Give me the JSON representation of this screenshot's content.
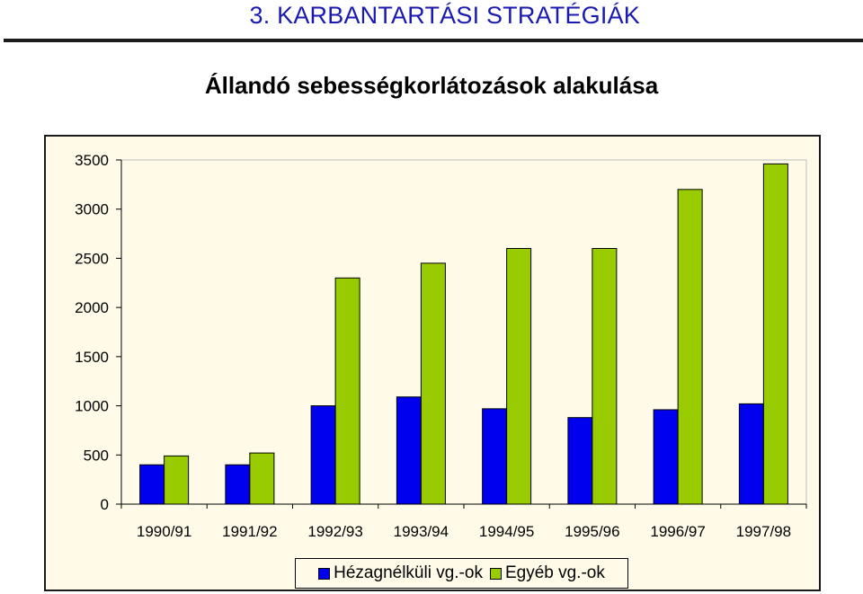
{
  "header": {
    "section_title": "3. KARBANTARTÁSI STRATÉGIÁK",
    "chart_title": "Állandó sebességkorlátozások alakulása"
  },
  "colors": {
    "title": "#1a1ab0",
    "plot_background": "#fffbe8",
    "series_1": "#0000ee",
    "series_2": "#99cc00"
  },
  "chart_data": {
    "type": "bar",
    "title": "Állandó sebességkorlátozások alakulása",
    "categories": [
      "1990/91",
      "1991/92",
      "1992/93",
      "1993/94",
      "1994/95",
      "1995/96",
      "1996/97",
      "1997/98"
    ],
    "series": [
      {
        "name": "Hézagnélküli vg.-ok",
        "color": "#0000ee",
        "values": [
          400,
          400,
          1000,
          1090,
          970,
          880,
          960,
          1020
        ]
      },
      {
        "name": "Egyéb vg.-ok",
        "color": "#99cc00",
        "values": [
          490,
          520,
          2300,
          2450,
          2600,
          2600,
          3200,
          3460
        ]
      }
    ],
    "ylim": [
      0,
      3500
    ],
    "yticks": [
      "0",
      "500",
      "1000",
      "1500",
      "2000",
      "2500",
      "3000",
      "3500"
    ],
    "grid": false,
    "legend": "bottom-center"
  }
}
